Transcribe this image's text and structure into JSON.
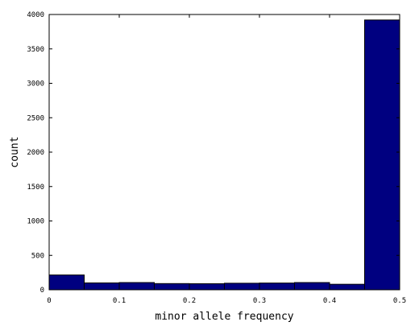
{
  "chart_data": {
    "type": "bar",
    "title": "",
    "xlabel": "minor allele frequency",
    "ylabel": "count",
    "xlim": [
      0,
      0.5
    ],
    "ylim": [
      0,
      4000
    ],
    "grid": false,
    "bar_color": "#000080",
    "x_ticks": [
      "0",
      "0.1",
      "0.2",
      "0.3",
      "0.4",
      "0.5"
    ],
    "y_ticks": [
      "0",
      "500",
      "1000",
      "1500",
      "2000",
      "2500",
      "3000",
      "3500",
      "4000"
    ],
    "bins": [
      {
        "x0": 0.0,
        "x1": 0.05,
        "value": 215
      },
      {
        "x0": 0.05,
        "x1": 0.1,
        "value": 100
      },
      {
        "x0": 0.1,
        "x1": 0.15,
        "value": 105
      },
      {
        "x0": 0.15,
        "x1": 0.2,
        "value": 90
      },
      {
        "x0": 0.2,
        "x1": 0.25,
        "value": 88
      },
      {
        "x0": 0.25,
        "x1": 0.3,
        "value": 95
      },
      {
        "x0": 0.3,
        "x1": 0.35,
        "value": 98
      },
      {
        "x0": 0.35,
        "x1": 0.4,
        "value": 105
      },
      {
        "x0": 0.4,
        "x1": 0.45,
        "value": 80
      },
      {
        "x0": 0.45,
        "x1": 0.5,
        "value": 3920
      }
    ]
  }
}
